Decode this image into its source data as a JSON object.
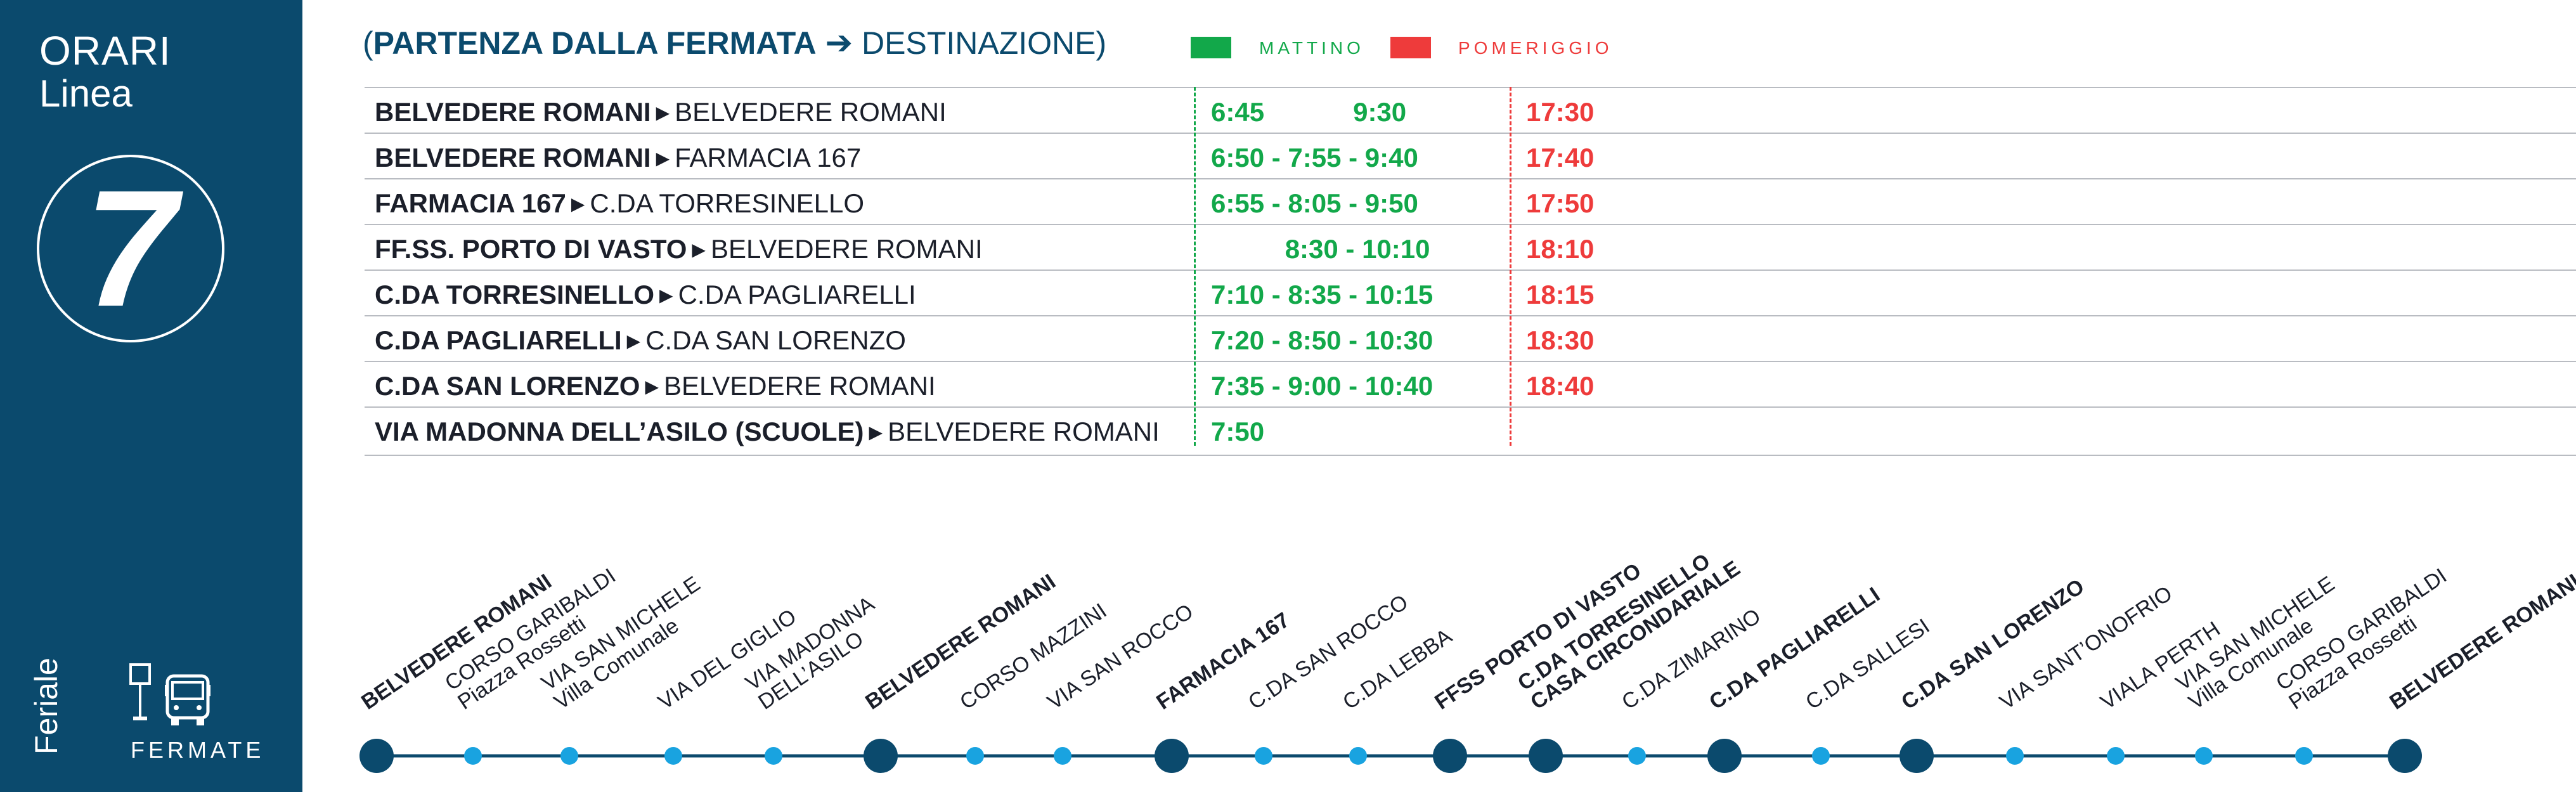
{
  "sidebar": {
    "orari": "ORARI",
    "linea": "Linea",
    "line_number": "7",
    "feriale": "Feriale",
    "fermate": "FERMATE",
    "icons": [
      "bus-stop-icon",
      "bus-icon"
    ]
  },
  "header": {
    "paren_open": "(",
    "bold_part": "PARTENZA DALLA FERMATA",
    "arrow": "➔",
    "regular_part": "DESTINAZIONE)",
    "legend_morning": "MATTINO",
    "legend_afternoon": "POMERIGGIO",
    "color_morning": "#12a84a",
    "color_afternoon": "#ee3b3b",
    "color_brand": "#0b4a6d"
  },
  "schedule": [
    {
      "from": "BELVEDERE ROMANI",
      "to": "BELVEDERE ROMANI",
      "morning": "6:45            9:30",
      "afternoon": "17:30"
    },
    {
      "from": "BELVEDERE ROMANI",
      "to": "FARMACIA 167",
      "morning": "6:50 - 7:55 - 9:40",
      "afternoon": "17:40"
    },
    {
      "from": "FARMACIA 167",
      "to": "C.DA TORRESINELLO",
      "morning": "6:55 - 8:05 - 9:50",
      "afternoon": "17:50"
    },
    {
      "from": "FF.SS. PORTO DI VASTO",
      "to": "BELVEDERE ROMANI",
      "morning": "          8:30 - 10:10",
      "afternoon": "18:10"
    },
    {
      "from": "C.DA TORRESINELLO",
      "to": "C.DA PAGLIARELLI",
      "morning": "7:10 - 8:35 - 10:15",
      "afternoon": "18:15"
    },
    {
      "from": "C.DA PAGLIARELLI",
      "to": "C.DA SAN LORENZO",
      "morning": "7:20 - 8:50 - 10:30",
      "afternoon": "18:30"
    },
    {
      "from": "C.DA SAN LORENZO",
      "to": "BELVEDERE ROMANI",
      "morning": "7:35 - 9:00 - 10:40",
      "afternoon": "18:40"
    },
    {
      "from": "VIA MADONNA DELL’ASILO (SCUOLE)",
      "to": "BELVEDERE ROMANI",
      "morning": "7:50",
      "afternoon": ""
    }
  ],
  "stops": [
    {
      "lines": [
        "BELVEDERE ROMANI"
      ],
      "major": true
    },
    {
      "lines": [
        "CORSO GARIBALDI",
        "Piazza Rossetti"
      ],
      "major": false
    },
    {
      "lines": [
        "VIA SAN MICHELE",
        "Villa Comunale"
      ],
      "major": false
    },
    {
      "lines": [
        "VIA DEL GIGLIO"
      ],
      "major": false
    },
    {
      "lines": [
        "VIA MADONNA",
        "DELL’ASILO"
      ],
      "major": false
    },
    {
      "lines": [
        "BELVEDERE ROMANI"
      ],
      "major": true
    },
    {
      "lines": [
        "CORSO MAZZINI"
      ],
      "major": false
    },
    {
      "lines": [
        "VIA SAN ROCCO"
      ],
      "major": false
    },
    {
      "lines": [
        "FARMACIA 167"
      ],
      "major": true
    },
    {
      "lines": [
        "C.DA SAN ROCCO"
      ],
      "major": false
    },
    {
      "lines": [
        "C.DA LEBBA"
      ],
      "major": false
    },
    {
      "lines": [
        "FFSS PORTO DI VASTO"
      ],
      "major": true
    },
    {
      "lines": [
        "C.DA TORRESINELLO",
        "CASA CIRCONDARIALE"
      ],
      "major": true
    },
    {
      "lines": [
        "C.DA ZIMARINO"
      ],
      "major": false
    },
    {
      "lines": [
        "C.DA PAGLIARELLI"
      ],
      "major": true
    },
    {
      "lines": [
        "C.DA SALLESI"
      ],
      "major": false
    },
    {
      "lines": [
        "C.DA SAN LORENZO"
      ],
      "major": true
    },
    {
      "lines": [
        "VIA SANT’ONOFRIO"
      ],
      "major": false
    },
    {
      "lines": [
        "VIALA PERTH"
      ],
      "major": false
    },
    {
      "lines": [
        "VIA SAN MICHELE",
        "Villa Comunale"
      ],
      "major": false
    },
    {
      "lines": [
        "CORSO GARIBALDI",
        "Piazza Rossetti"
      ],
      "major": false
    },
    {
      "lines": [
        "BELVEDERE ROMANI"
      ],
      "major": true
    }
  ]
}
